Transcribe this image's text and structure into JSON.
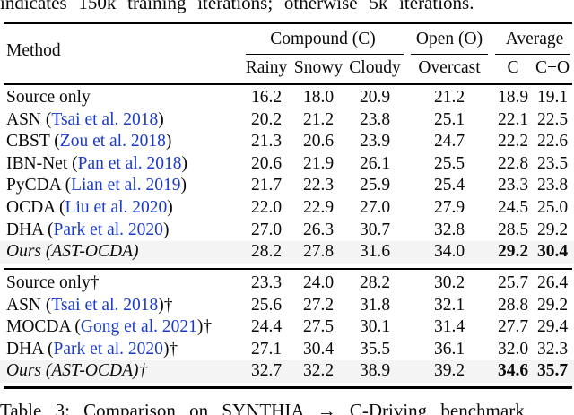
{
  "context": {
    "top_partial_text": "indicates 150k training iterations; otherwise 5k iterations.",
    "caption_partial_text": "Table 3: Comparison on SYNTHIA → C-Driving benchmark"
  },
  "colors": {
    "citation_blue": "#1a3ac8",
    "highlight_row_bg": "#f4f4f4",
    "rule_color": "#000000"
  },
  "table": {
    "method_header": "Method",
    "groups": [
      {
        "label": "Compound (C)"
      },
      {
        "label": "Open (O)"
      },
      {
        "label": "Average"
      }
    ],
    "subheaders": [
      "Rainy",
      "Snowy",
      "Cloudy",
      "Overcast",
      "C",
      "C+O"
    ],
    "blocks": [
      {
        "rows": [
          {
            "method": [
              {
                "t": "Source only"
              }
            ],
            "values": [
              "16.2",
              "18.0",
              "20.9",
              "21.2",
              "18.9",
              "19.1"
            ],
            "italic": false,
            "highlight": false,
            "bold_avg": false
          },
          {
            "method": [
              {
                "t": "ASN ("
              },
              {
                "t": "Tsai et al. 2018",
                "c": "cite"
              },
              {
                "t": ")"
              }
            ],
            "values": [
              "20.2",
              "21.2",
              "23.8",
              "25.1",
              "22.1",
              "22.5"
            ],
            "italic": false,
            "highlight": false,
            "bold_avg": false
          },
          {
            "method": [
              {
                "t": "CBST ("
              },
              {
                "t": "Zou et al. 2018",
                "c": "cite"
              },
              {
                "t": ")"
              }
            ],
            "values": [
              "21.3",
              "20.6",
              "23.9",
              "24.7",
              "22.2",
              "22.6"
            ],
            "italic": false,
            "highlight": false,
            "bold_avg": false
          },
          {
            "method": [
              {
                "t": "IBN-Net ("
              },
              {
                "t": "Pan et al. 2018",
                "c": "cite"
              },
              {
                "t": ")"
              }
            ],
            "values": [
              "20.6",
              "21.9",
              "26.1",
              "25.5",
              "22.8",
              "23.5"
            ],
            "italic": false,
            "highlight": false,
            "bold_avg": false
          },
          {
            "method": [
              {
                "t": "PyCDA ("
              },
              {
                "t": "Lian et al. 2019",
                "c": "cite"
              },
              {
                "t": ")"
              }
            ],
            "values": [
              "21.7",
              "22.3",
              "25.9",
              "25.4",
              "23.3",
              "23.8"
            ],
            "italic": false,
            "highlight": false,
            "bold_avg": false
          },
          {
            "method": [
              {
                "t": "OCDA ("
              },
              {
                "t": "Liu et al. 2020",
                "c": "cite"
              },
              {
                "t": ")"
              }
            ],
            "values": [
              "22.0",
              "22.9",
              "27.0",
              "27.9",
              "24.5",
              "25.0"
            ],
            "italic": false,
            "highlight": false,
            "bold_avg": false
          },
          {
            "method": [
              {
                "t": "DHA ("
              },
              {
                "t": "Park et al. 2020",
                "c": "cite"
              },
              {
                "t": ")"
              }
            ],
            "values": [
              "27.0",
              "26.3",
              "30.7",
              "32.8",
              "28.5",
              "29.2"
            ],
            "italic": false,
            "highlight": false,
            "bold_avg": false
          },
          {
            "method": [
              {
                "t": "Ours (AST-OCDA)"
              }
            ],
            "values": [
              "28.2",
              "27.8",
              "31.6",
              "34.0",
              "29.2",
              "30.4"
            ],
            "italic": true,
            "highlight": true,
            "bold_avg": true
          }
        ]
      },
      {
        "rows": [
          {
            "method": [
              {
                "t": "Source only†"
              }
            ],
            "values": [
              "23.3",
              "24.0",
              "28.2",
              "30.2",
              "25.7",
              "26.4"
            ],
            "italic": false,
            "highlight": false,
            "bold_avg": false
          },
          {
            "method": [
              {
                "t": "ASN ("
              },
              {
                "t": "Tsai et al. 2018",
                "c": "cite"
              },
              {
                "t": ")†"
              }
            ],
            "values": [
              "25.6",
              "27.2",
              "31.8",
              "32.1",
              "28.8",
              "29.2"
            ],
            "italic": false,
            "highlight": false,
            "bold_avg": false
          },
          {
            "method": [
              {
                "t": "MOCDA ("
              },
              {
                "t": "Gong et al. 2021",
                "c": "cite"
              },
              {
                "t": ")†"
              }
            ],
            "values": [
              "24.4",
              "27.5",
              "30.1",
              "31.4",
              "27.7",
              "29.4"
            ],
            "italic": false,
            "highlight": false,
            "bold_avg": false
          },
          {
            "method": [
              {
                "t": "DHA ("
              },
              {
                "t": "Park et al. 2020",
                "c": "cite"
              },
              {
                "t": ")†"
              }
            ],
            "values": [
              "27.1",
              "30.4",
              "35.5",
              "36.1",
              "32.0",
              "32.3"
            ],
            "italic": false,
            "highlight": false,
            "bold_avg": false
          },
          {
            "method": [
              {
                "t": "Ours (AST-OCDA)†"
              }
            ],
            "values": [
              "32.7",
              "32.2",
              "38.9",
              "39.2",
              "34.6",
              "35.7"
            ],
            "italic": true,
            "highlight": true,
            "bold_avg": true
          }
        ]
      }
    ]
  }
}
